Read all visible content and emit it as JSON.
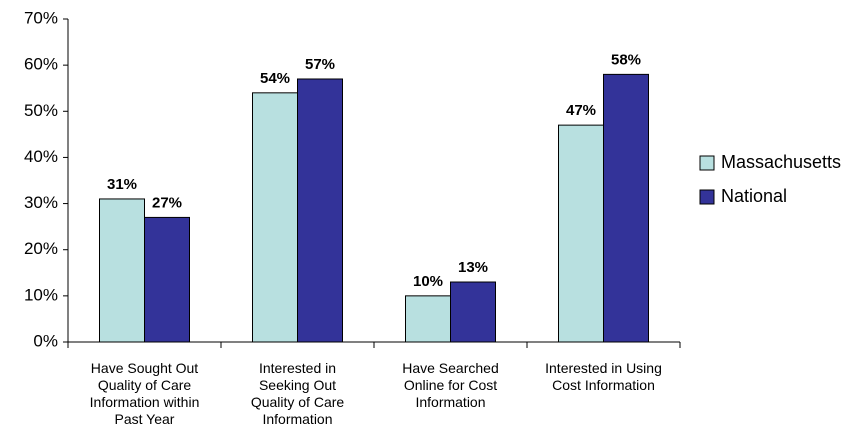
{
  "chart_data": {
    "type": "bar",
    "categories": [
      "Have Sought Out\nQuality of Care\nInformation within\nPast Year",
      "Interested in\nSeeking Out\nQuality of Care\nInformation",
      "Have Searched\nOnline for Cost\nInformation",
      "Interested in Using\nCost Information"
    ],
    "series": [
      {
        "name": "Massachusetts",
        "color": "#b8e0e0",
        "values": [
          31,
          54,
          10,
          47
        ],
        "value_labels": [
          "31%",
          "54%",
          "10%",
          "47%"
        ]
      },
      {
        "name": "National",
        "color": "#333399",
        "values": [
          27,
          57,
          13,
          58
        ],
        "value_labels": [
          "27%",
          "57%",
          "13%",
          "58%"
        ]
      }
    ],
    "ylim": [
      0,
      70
    ],
    "yticks": [
      {
        "value": 0,
        "label": "0%"
      },
      {
        "value": 10,
        "label": "10%"
      },
      {
        "value": 20,
        "label": "20%"
      },
      {
        "value": 30,
        "label": "30%"
      },
      {
        "value": 40,
        "label": "40%"
      },
      {
        "value": 50,
        "label": "50%"
      },
      {
        "value": 60,
        "label": "60%"
      },
      {
        "value": 70,
        "label": "70%"
      }
    ],
    "legend": "right"
  }
}
